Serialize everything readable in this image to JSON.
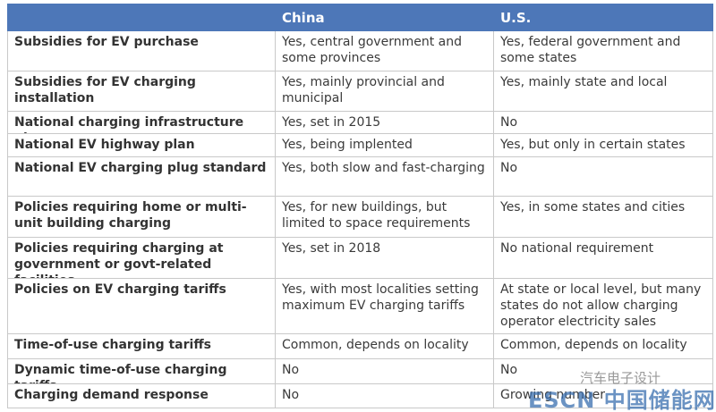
{
  "table": {
    "header": [
      "China",
      "U.S."
    ],
    "rows": [
      [
        "Subsidies for EV purchase",
        "Yes, central government and some provinces",
        "Yes, federal government and some states"
      ],
      [
        "Subsidies for EV charging installation",
        "Yes, mainly provincial and municipal",
        "Yes, mainly state and local"
      ],
      [
        "National charging infrastructure plan",
        "Yes, set in 2015",
        "No"
      ],
      [
        "National EV highway plan",
        "Yes, being implented",
        "Yes, but only in certain states"
      ],
      [
        "National EV charging plug standard",
        "Yes, both slow and fast-charging",
        "No"
      ],
      [
        "Policies requiring home or multi-unit building charging",
        "Yes, for new buildings, but limited to space requirements",
        "Yes, in some states and cities"
      ],
      [
        "Policies requiring charging at government or govt-related facilities",
        "Yes, set in 2018",
        "No national requirement"
      ],
      [
        "Policies on EV charging tariffs",
        "Yes, with most localities setting maximum EV charging tariffs",
        "At state or local level, but many states do not allow charging operator  electricity sales"
      ],
      [
        "Time-of-use charging tariffs",
        "Common, depends on locality",
        "Common, depends on locality"
      ],
      [
        "Dynamic time-of-use charging tariffs",
        "No",
        "No"
      ],
      [
        "Charging demand response programs",
        "No",
        "Growing number"
      ]
    ]
  },
  "watermark": {
    "top": "汽车电子设计",
    "bottom": "ESCN 中国储能网"
  }
}
